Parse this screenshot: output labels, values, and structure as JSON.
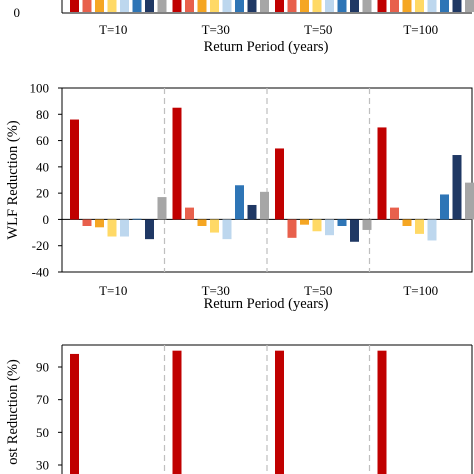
{
  "chart_data": [
    {
      "type": "bar",
      "panel": "top (cropped)",
      "categories": [
        "T=10",
        "T=30",
        "T=50",
        "T=100"
      ],
      "xlabel": "Return Period (years)",
      "ylabel": "",
      "yticks": [
        0
      ],
      "colors": [
        "#C00000",
        "#E8604C",
        "#F5A623",
        "#FFD966",
        "#BDD7EE",
        "#2E75B6",
        "#1F3864",
        "#A6A6A6"
      ]
    },
    {
      "type": "bar",
      "panel": "middle",
      "categories": [
        "T=10",
        "T=30",
        "T=50",
        "T=100"
      ],
      "series_count": 8,
      "colors": [
        "#C00000",
        "#E8604C",
        "#F5A623",
        "#FFD966",
        "#BDD7EE",
        "#2E75B6",
        "#1F3864",
        "#A6A6A6"
      ],
      "values": [
        [
          76,
          -5,
          -6,
          -13,
          -13,
          0.5,
          -15,
          17
        ],
        [
          85,
          9,
          -5,
          -10,
          -15,
          26,
          11,
          21
        ],
        [
          54,
          -14,
          -4,
          -9,
          -12,
          -5,
          -17,
          -8
        ],
        [
          70,
          9,
          -5,
          -11,
          -16,
          19,
          49,
          28
        ]
      ],
      "xlabel": "Return Period (years)",
      "ylabel": "WLF Reduction (%)",
      "ylim": [
        -40,
        100
      ],
      "yticks": [
        -40,
        -20,
        0,
        20,
        40,
        60,
        80,
        100
      ],
      "grid": false,
      "category_separators": "dashed"
    },
    {
      "type": "bar",
      "panel": "bottom (cropped)",
      "categories": [
        "T=10",
        "T=30",
        "T=50",
        "T=100"
      ],
      "values_first_series": [
        98,
        100,
        100,
        100
      ],
      "color": "#C00000",
      "ylabel": "ost Reduction (%)",
      "yticks": [
        30,
        50,
        70,
        90
      ]
    }
  ]
}
